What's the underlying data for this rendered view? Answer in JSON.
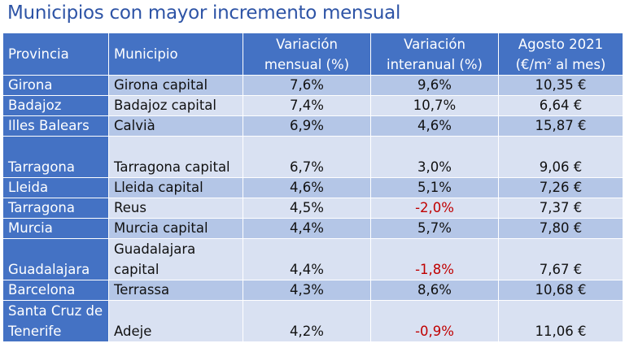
{
  "title": "Municipios con mayor incremento mensual",
  "headers": {
    "provincia": "Provincia",
    "municipio": "Municipio",
    "var_mensual_1": "Variación",
    "var_mensual_2": "mensual (%)",
    "var_interanual_1": "Variación",
    "var_interanual_2": "interanual (%)",
    "agosto_1": "Agosto 2021",
    "agosto_2a": "(€/m",
    "agosto_sup": "2",
    "agosto_2b": " al mes)"
  },
  "rows": [
    {
      "provincia": "Girona",
      "municipio": "Girona capital",
      "mensual": "7,6%",
      "interanual": "9,6%",
      "precio": "10,35 €"
    },
    {
      "provincia": "Badajoz",
      "municipio": "Badajoz capital",
      "mensual": "7,4%",
      "interanual": "10,7%",
      "precio": "6,64 €"
    },
    {
      "provincia": "Illes Balears",
      "municipio": "Calvià",
      "mensual": "6,9%",
      "interanual": "4,6%",
      "precio": "15,87 €"
    },
    {
      "provincia": "Tarragona",
      "municipio": "Tarragona capital",
      "mensual": "6,7%",
      "interanual": "3,0%",
      "precio": "9,06 €"
    },
    {
      "provincia": "Lleida",
      "municipio": "Lleida capital",
      "mensual": "4,6%",
      "interanual": "5,1%",
      "precio": "7,26 €"
    },
    {
      "provincia": "Tarragona",
      "municipio": "Reus",
      "mensual": "4,5%",
      "interanual": "-2,0%",
      "precio": "7,37 €"
    },
    {
      "provincia": "Murcia",
      "municipio": "Murcia capital",
      "mensual": "4,4%",
      "interanual": "5,7%",
      "precio": "7,80 €"
    },
    {
      "provincia": "Guadalajara",
      "municipio": "Guadalajara capital",
      "mensual": "4,4%",
      "interanual": "-1,8%",
      "precio": "7,67 €"
    },
    {
      "provincia": "Barcelona",
      "municipio": "Terrassa",
      "mensual": "4,3%",
      "interanual": "8,6%",
      "precio": "10,68 €"
    },
    {
      "provincia": "Santa Cruz de Tenerife",
      "municipio": "Adeje",
      "mensual": "4,2%",
      "interanual": "-0,9%",
      "precio": "11,06 €"
    }
  ],
  "colors": {
    "title": "#2E54A6",
    "header_bg": "#4472C4",
    "row_dark": "#B4C6E7",
    "row_light": "#D9E1F2",
    "negative": "#C00000"
  }
}
